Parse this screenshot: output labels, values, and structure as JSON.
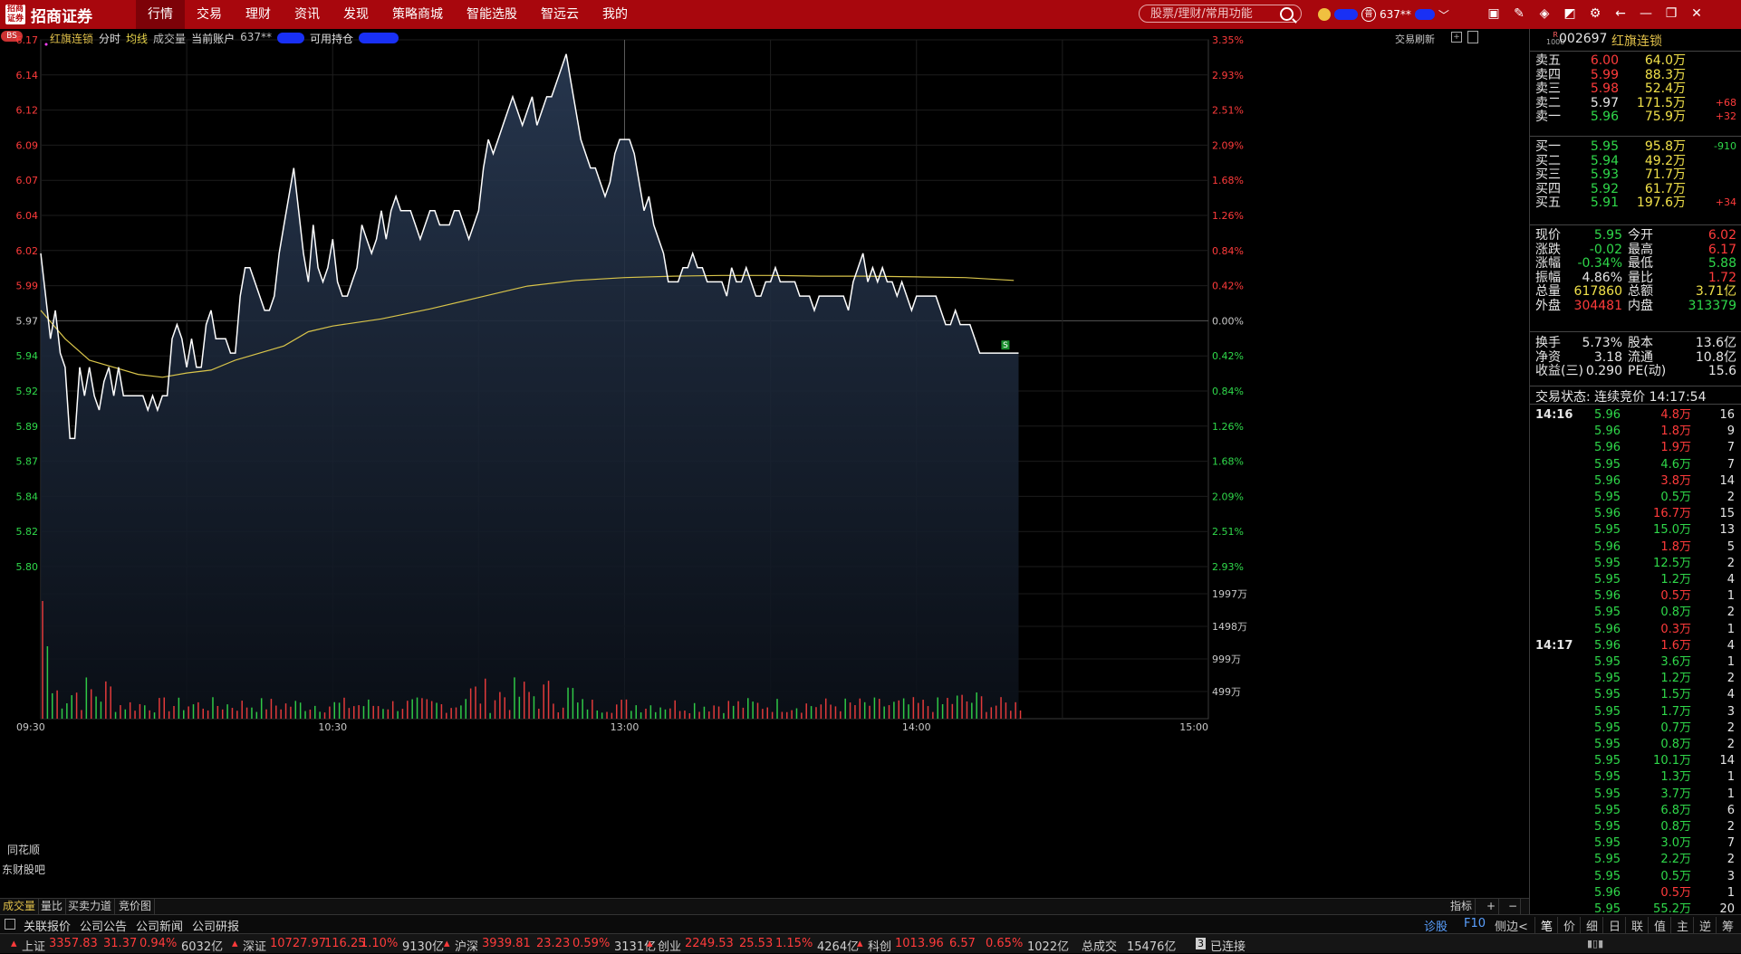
{
  "app": {
    "logo_text": "招商证券",
    "logo_mark": "招商证券",
    "menu": [
      "行情",
      "交易",
      "理财",
      "资讯",
      "发现",
      "策略商城",
      "智能选股",
      "智远云",
      "我的"
    ],
    "search_placeholder": "股票/理财/常用功能",
    "user_label": "637**"
  },
  "chart_header": {
    "stock_name": "红旗连锁",
    "mode": "分时",
    "avg_label": "均线",
    "vol_label": "成交量",
    "account_label": "当前账户",
    "account_value": "637**",
    "position_label": "可用持仓",
    "refresh_label": "交易刷新"
  },
  "left_labels": [
    "同花顺",
    "东财股吧"
  ],
  "badge": "BS",
  "chart_data": {
    "type": "line",
    "price_ticks": [
      "6.17",
      "6.14",
      "6.12",
      "6.09",
      "6.07",
      "6.04",
      "6.02",
      "5.99",
      "5.97",
      "5.94",
      "5.92",
      "5.89",
      "5.87",
      "5.84",
      "5.82",
      "5.80"
    ],
    "pct_ticks": [
      "3.35%",
      "2.93%",
      "2.51%",
      "2.09%",
      "1.68%",
      "1.26%",
      "0.84%",
      "0.42%",
      "0.00%",
      "0.42%",
      "0.84%",
      "1.26%",
      "1.68%",
      "2.09%",
      "2.51%",
      "2.93%"
    ],
    "vol_ticks": [
      "1997万",
      "1498万",
      "999万",
      "499万"
    ],
    "time_ticks": [
      "09:30",
      "10:30",
      "13:00",
      "14:00",
      "15:00"
    ],
    "ylim": [
      5.78,
      6.17
    ],
    "prev_close": 5.97,
    "total_minutes": 240,
    "price": [
      [
        0,
        6.02
      ],
      [
        1,
        5.99
      ],
      [
        2,
        5.96
      ],
      [
        3,
        5.98
      ],
      [
        4,
        5.95
      ],
      [
        5,
        5.94
      ],
      [
        6,
        5.89
      ],
      [
        7,
        5.89
      ],
      [
        8,
        5.94
      ],
      [
        9,
        5.92
      ],
      [
        10,
        5.94
      ],
      [
        11,
        5.92
      ],
      [
        12,
        5.91
      ],
      [
        13,
        5.93
      ],
      [
        14,
        5.94
      ],
      [
        15,
        5.92
      ],
      [
        16,
        5.94
      ],
      [
        17,
        5.92
      ],
      [
        18,
        5.92
      ],
      [
        20,
        5.92
      ],
      [
        21,
        5.92
      ],
      [
        22,
        5.91
      ],
      [
        23,
        5.92
      ],
      [
        24,
        5.91
      ],
      [
        25,
        5.92
      ],
      [
        26,
        5.92
      ],
      [
        27,
        5.96
      ],
      [
        28,
        5.97
      ],
      [
        29,
        5.96
      ],
      [
        30,
        5.94
      ],
      [
        31,
        5.96
      ],
      [
        32,
        5.94
      ],
      [
        33,
        5.94
      ],
      [
        34,
        5.97
      ],
      [
        35,
        5.98
      ],
      [
        36,
        5.96
      ],
      [
        37,
        5.96
      ],
      [
        38,
        5.96
      ],
      [
        39,
        5.95
      ],
      [
        40,
        5.95
      ],
      [
        41,
        5.99
      ],
      [
        42,
        6.01
      ],
      [
        43,
        6.01
      ],
      [
        44,
        6.0
      ],
      [
        45,
        5.99
      ],
      [
        46,
        5.98
      ],
      [
        47,
        5.98
      ],
      [
        48,
        5.99
      ],
      [
        49,
        6.02
      ],
      [
        50,
        6.04
      ],
      [
        51,
        6.06
      ],
      [
        52,
        6.08
      ],
      [
        53,
        6.05
      ],
      [
        54,
        6.02
      ],
      [
        55,
        6.0
      ],
      [
        56,
        6.04
      ],
      [
        57,
        6.01
      ],
      [
        58,
        6.0
      ],
      [
        59,
        6.01
      ],
      [
        60,
        6.03
      ],
      [
        61,
        6.0
      ],
      [
        62,
        5.99
      ],
      [
        63,
        5.99
      ],
      [
        64,
        6.0
      ],
      [
        65,
        6.01
      ],
      [
        66,
        6.04
      ],
      [
        67,
        6.03
      ],
      [
        68,
        6.02
      ],
      [
        69,
        6.03
      ],
      [
        70,
        6.05
      ],
      [
        71,
        6.03
      ],
      [
        72,
        6.05
      ],
      [
        73,
        6.06
      ],
      [
        74,
        6.05
      ],
      [
        75,
        6.05
      ],
      [
        76,
        6.05
      ],
      [
        77,
        6.04
      ],
      [
        78,
        6.03
      ],
      [
        79,
        6.04
      ],
      [
        80,
        6.05
      ],
      [
        81,
        6.05
      ],
      [
        82,
        6.04
      ],
      [
        83,
        6.04
      ],
      [
        84,
        6.04
      ],
      [
        85,
        6.05
      ],
      [
        86,
        6.05
      ],
      [
        87,
        6.04
      ],
      [
        88,
        6.03
      ],
      [
        89,
        6.04
      ],
      [
        90,
        6.05
      ],
      [
        91,
        6.08
      ],
      [
        92,
        6.1
      ],
      [
        93,
        6.09
      ],
      [
        94,
        6.1
      ],
      [
        95,
        6.11
      ],
      [
        96,
        6.12
      ],
      [
        97,
        6.13
      ],
      [
        98,
        6.12
      ],
      [
        99,
        6.11
      ],
      [
        100,
        6.12
      ],
      [
        101,
        6.13
      ],
      [
        102,
        6.11
      ],
      [
        103,
        6.12
      ],
      [
        104,
        6.13
      ],
      [
        105,
        6.13
      ],
      [
        106,
        6.14
      ],
      [
        107,
        6.15
      ],
      [
        108,
        6.16
      ],
      [
        109,
        6.14
      ],
      [
        110,
        6.12
      ],
      [
        111,
        6.1
      ],
      [
        112,
        6.09
      ],
      [
        113,
        6.08
      ],
      [
        114,
        6.08
      ],
      [
        115,
        6.07
      ],
      [
        116,
        6.06
      ],
      [
        117,
        6.07
      ],
      [
        118,
        6.09
      ],
      [
        119,
        6.1
      ],
      [
        120,
        6.1
      ],
      [
        121,
        6.1
      ],
      [
        122,
        6.09
      ],
      [
        123,
        6.07
      ],
      [
        124,
        6.05
      ],
      [
        125,
        6.06
      ],
      [
        126,
        6.04
      ],
      [
        127,
        6.03
      ],
      [
        128,
        6.02
      ],
      [
        129,
        6.0
      ],
      [
        130,
        6.0
      ],
      [
        131,
        6.0
      ],
      [
        132,
        6.01
      ],
      [
        133,
        6.01
      ],
      [
        134,
        6.02
      ],
      [
        135,
        6.01
      ],
      [
        136,
        6.01
      ],
      [
        137,
        6.0
      ],
      [
        138,
        6.0
      ],
      [
        139,
        6.0
      ],
      [
        140,
        6.0
      ],
      [
        141,
        5.99
      ],
      [
        142,
        6.01
      ],
      [
        143,
        6.0
      ],
      [
        144,
        6.0
      ],
      [
        145,
        6.01
      ],
      [
        146,
        6.0
      ],
      [
        147,
        5.99
      ],
      [
        148,
        5.99
      ],
      [
        149,
        6.0
      ],
      [
        150,
        6.0
      ],
      [
        151,
        6.01
      ],
      [
        152,
        6.0
      ],
      [
        153,
        6.0
      ],
      [
        154,
        6.0
      ],
      [
        155,
        6.0
      ],
      [
        156,
        5.99
      ],
      [
        157,
        5.99
      ],
      [
        158,
        5.99
      ],
      [
        159,
        5.98
      ],
      [
        160,
        5.99
      ],
      [
        161,
        5.99
      ],
      [
        162,
        5.99
      ],
      [
        163,
        5.99
      ],
      [
        164,
        5.99
      ],
      [
        165,
        5.99
      ],
      [
        166,
        5.98
      ],
      [
        167,
        6.0
      ],
      [
        168,
        6.01
      ],
      [
        169,
        6.02
      ],
      [
        170,
        6.0
      ],
      [
        171,
        6.01
      ],
      [
        172,
        6.0
      ],
      [
        173,
        6.01
      ],
      [
        174,
        6.0
      ],
      [
        175,
        6.0
      ],
      [
        176,
        5.99
      ],
      [
        177,
        6.0
      ],
      [
        178,
        5.99
      ],
      [
        179,
        5.98
      ],
      [
        180,
        5.99
      ],
      [
        181,
        5.99
      ],
      [
        182,
        5.99
      ],
      [
        183,
        5.99
      ],
      [
        184,
        5.99
      ],
      [
        185,
        5.98
      ],
      [
        186,
        5.97
      ],
      [
        187,
        5.97
      ],
      [
        188,
        5.98
      ],
      [
        189,
        5.97
      ],
      [
        190,
        5.97
      ],
      [
        191,
        5.97
      ],
      [
        192,
        5.96
      ],
      [
        193,
        5.95
      ],
      [
        194,
        5.95
      ],
      [
        195,
        5.95
      ],
      [
        196,
        5.95
      ],
      [
        197,
        5.95
      ],
      [
        198,
        5.95
      ],
      [
        199,
        5.95
      ],
      [
        200,
        5.95
      ],
      [
        201,
        5.95
      ]
    ],
    "avg": [
      [
        0,
        5.98
      ],
      [
        5,
        5.96
      ],
      [
        10,
        5.945
      ],
      [
        20,
        5.935
      ],
      [
        25,
        5.933
      ],
      [
        30,
        5.936
      ],
      [
        35,
        5.938
      ],
      [
        40,
        5.945
      ],
      [
        50,
        5.955
      ],
      [
        55,
        5.965
      ],
      [
        60,
        5.969
      ],
      [
        70,
        5.974
      ],
      [
        80,
        5.981
      ],
      [
        90,
        5.989
      ],
      [
        100,
        5.997
      ],
      [
        110,
        6.001
      ],
      [
        120,
        6.003
      ],
      [
        130,
        6.004
      ],
      [
        140,
        6.0045
      ],
      [
        150,
        6.0045
      ],
      [
        160,
        6.004
      ],
      [
        170,
        6.004
      ],
      [
        180,
        6.0035
      ],
      [
        190,
        6.003
      ],
      [
        200,
        6.001
      ]
    ],
    "sell_marker": {
      "minute": 198,
      "price": 5.955,
      "label": "S"
    }
  },
  "quote": {
    "code": "002697",
    "name": "红旗连锁",
    "asks": [
      {
        "label": "卖五",
        "price": "6.00",
        "vol": "64.0万",
        "chg": ""
      },
      {
        "label": "卖四",
        "price": "5.99",
        "vol": "88.3万",
        "chg": ""
      },
      {
        "label": "卖三",
        "price": "5.98",
        "vol": "52.4万",
        "chg": ""
      },
      {
        "label": "卖二",
        "price": "5.97",
        "vol": "171.5万",
        "chg": "+68"
      },
      {
        "label": "卖一",
        "price": "5.96",
        "vol": "75.9万",
        "chg": "+32"
      }
    ],
    "bids": [
      {
        "label": "买一",
        "price": "5.95",
        "vol": "95.8万",
        "chg": "-910"
      },
      {
        "label": "买二",
        "price": "5.94",
        "vol": "49.2万",
        "chg": ""
      },
      {
        "label": "买三",
        "price": "5.93",
        "vol": "71.7万",
        "chg": ""
      },
      {
        "label": "买四",
        "price": "5.92",
        "vol": "61.7万",
        "chg": ""
      },
      {
        "label": "买五",
        "price": "5.91",
        "vol": "197.6万",
        "chg": "+34"
      }
    ],
    "stats": [
      [
        "现价",
        "5.95",
        "今开",
        "6.02"
      ],
      [
        "涨跌",
        "-0.02",
        "最高",
        "6.17"
      ],
      [
        "涨幅",
        "-0.34%",
        "最低",
        "5.88"
      ],
      [
        "振幅",
        "4.86%",
        "量比",
        "1.72"
      ],
      [
        "总量",
        "617860",
        "总额",
        "3.71亿"
      ],
      [
        "外盘",
        "304481",
        "内盘",
        "313379"
      ]
    ],
    "stats2": [
      [
        "换手",
        "5.73%",
        "股本",
        "13.6亿"
      ],
      [
        "净资",
        "3.18",
        "流通",
        "10.8亿"
      ],
      [
        "收益(三)",
        "0.290",
        "PE(动)",
        "15.6"
      ]
    ],
    "trade_state": "交易状态: 连续竞价 14:17:54"
  },
  "ticks": [
    {
      "time": "14:16",
      "price": "5.96",
      "vol": "4.8万",
      "n": "16"
    },
    {
      "time": "",
      "price": "5.96",
      "vol": "1.8万",
      "n": "9"
    },
    {
      "time": "",
      "price": "5.96",
      "vol": "1.9万",
      "n": "7"
    },
    {
      "time": "",
      "price": "5.95",
      "vol": "4.6万",
      "n": "7"
    },
    {
      "time": "",
      "price": "5.96",
      "vol": "3.8万",
      "n": "14"
    },
    {
      "time": "",
      "price": "5.95",
      "vol": "0.5万",
      "n": "2"
    },
    {
      "time": "",
      "price": "5.96",
      "vol": "16.7万",
      "n": "15"
    },
    {
      "time": "",
      "price": "5.95",
      "vol": "15.0万",
      "n": "13"
    },
    {
      "time": "",
      "price": "5.96",
      "vol": "1.8万",
      "n": "5"
    },
    {
      "time": "",
      "price": "5.95",
      "vol": "12.5万",
      "n": "2"
    },
    {
      "time": "",
      "price": "5.95",
      "vol": "1.2万",
      "n": "4"
    },
    {
      "time": "",
      "price": "5.96",
      "vol": "0.5万",
      "n": "1"
    },
    {
      "time": "",
      "price": "5.95",
      "vol": "0.8万",
      "n": "2"
    },
    {
      "time": "",
      "price": "5.96",
      "vol": "0.3万",
      "n": "1"
    },
    {
      "time": "14:17",
      "price": "5.96",
      "vol": "1.6万",
      "n": "4"
    },
    {
      "time": "",
      "price": "5.95",
      "vol": "3.6万",
      "n": "1"
    },
    {
      "time": "",
      "price": "5.95",
      "vol": "1.2万",
      "n": "2"
    },
    {
      "time": "",
      "price": "5.95",
      "vol": "1.5万",
      "n": "4"
    },
    {
      "time": "",
      "price": "5.95",
      "vol": "1.7万",
      "n": "3"
    },
    {
      "time": "",
      "price": "5.95",
      "vol": "0.7万",
      "n": "2"
    },
    {
      "time": "",
      "price": "5.95",
      "vol": "0.8万",
      "n": "2"
    },
    {
      "time": "",
      "price": "5.95",
      "vol": "10.1万",
      "n": "14"
    },
    {
      "time": "",
      "price": "5.95",
      "vol": "1.3万",
      "n": "1"
    },
    {
      "time": "",
      "price": "5.95",
      "vol": "3.7万",
      "n": "1"
    },
    {
      "time": "",
      "price": "5.95",
      "vol": "6.8万",
      "n": "6"
    },
    {
      "time": "",
      "price": "5.95",
      "vol": "0.8万",
      "n": "2"
    },
    {
      "time": "",
      "price": "5.95",
      "vol": "3.0万",
      "n": "7"
    },
    {
      "time": "",
      "price": "5.95",
      "vol": "2.2万",
      "n": "2"
    },
    {
      "time": "",
      "price": "5.95",
      "vol": "0.5万",
      "n": "3"
    },
    {
      "time": "",
      "price": "5.96",
      "vol": "0.5万",
      "n": "1"
    },
    {
      "time": "",
      "price": "5.95",
      "vol": "55.2万",
      "n": "20"
    }
  ],
  "tabs": [
    "成交量",
    "量比",
    "买卖力道",
    "竞价图"
  ],
  "tab_right": [
    "指标",
    "+",
    "−"
  ],
  "links": [
    "关联报价",
    "公司公告",
    "公司新闻",
    "公司研报"
  ],
  "links_right": [
    "诊股",
    "F10",
    "侧边<"
  ],
  "view_tabs": [
    "笔",
    "价",
    "细",
    "日",
    "联",
    "值",
    "主",
    "逆",
    "筹"
  ],
  "status": {
    "items": [
      {
        "name": "上证",
        "value": "3357.83",
        "chg": "31.37",
        "pct": "0.94%",
        "amt": "6032亿"
      },
      {
        "name": "深证",
        "value": "10727.97",
        "chg": "116.25",
        "pct": "1.10%",
        "amt": "9130亿"
      },
      {
        "name": "沪深",
        "value": "3939.81",
        "chg": "23.23",
        "pct": "0.59%",
        "amt": "3131亿"
      },
      {
        "name": "创业",
        "value": "2249.53",
        "chg": "25.53",
        "pct": "1.15%",
        "amt": "4264亿"
      },
      {
        "name": "科创",
        "value": "1013.96",
        "chg": "6.57",
        "pct": "0.65%",
        "amt": "1022亿"
      }
    ],
    "total_label": "总成交",
    "total_value": "15476亿",
    "conn_label": "已连接",
    "conn_num": "3"
  },
  "colors": {
    "up": "#ff3b3b",
    "down": "#2fd84a",
    "avg": "#d8c44a",
    "price_line": "#ffffff",
    "topbar": "#a8070d"
  }
}
